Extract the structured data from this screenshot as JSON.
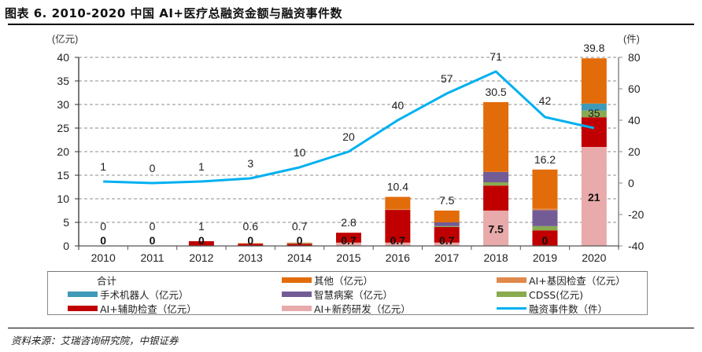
{
  "title": "图表 6. 2010-2020 中国 AI+医疗总融资金额与融资事件数",
  "source": "资料来源：艾瑞咨询研究院，中银证券",
  "chart_data": {
    "type": "bar",
    "stacked": true,
    "title": "2010-2020 中国 AI+医疗总融资金额与融资事件数",
    "categories": [
      "2010",
      "2011",
      "2012",
      "2013",
      "2014",
      "2015",
      "2016",
      "2017",
      "2018",
      "2019",
      "2020"
    ],
    "left_axis": {
      "label": "(亿元)",
      "ylim": [
        0,
        40
      ],
      "ticks": [
        "0",
        "5",
        "10",
        "15",
        "20",
        "25",
        "30",
        "35",
        "40"
      ]
    },
    "right_axis": {
      "label": "(件)",
      "ylim": [
        -40,
        80
      ],
      "ticks": [
        "-40",
        "-20",
        "0",
        "20",
        "40",
        "60",
        "80"
      ]
    },
    "grid": true,
    "legend_position": "bottom",
    "series": [
      {
        "name": "AI+新药研发（亿元）",
        "color": "#E8AAAA",
        "axis": "left",
        "values": [
          0,
          0,
          0,
          0,
          0,
          0.7,
          0.7,
          0.7,
          7.5,
          0,
          21
        ]
      },
      {
        "name": "AI+辅助检查（亿元）",
        "color": "#C00000",
        "axis": "left",
        "values": [
          0,
          0,
          1.0,
          0.5,
          0.45,
          2.1,
          7.0,
          3.3,
          5.3,
          3.3,
          6.3
        ]
      },
      {
        "name": "CDSS(亿元)",
        "color": "#8AAA50",
        "axis": "left",
        "values": [
          0,
          0,
          0,
          0,
          0.2,
          0,
          0,
          0.2,
          0.7,
          0.9,
          1.4
        ]
      },
      {
        "name": "智慧病案（亿元）",
        "color": "#735C96",
        "axis": "left",
        "values": [
          0,
          0,
          0,
          0,
          0,
          0,
          0,
          0.8,
          2.2,
          3.4,
          0
        ]
      },
      {
        "name": "手术机器人（亿元）",
        "color": "#3E9AB8",
        "axis": "left",
        "values": [
          0,
          0,
          0,
          0,
          0,
          0,
          0,
          0,
          0,
          0,
          1.5
        ]
      },
      {
        "name": "AI+基因检查（亿元）",
        "color": "#E0894A",
        "axis": "left",
        "values": [
          0,
          0,
          0,
          0.1,
          0.05,
          0,
          0.1,
          0,
          0,
          0.3,
          0
        ]
      },
      {
        "name": "其他（亿元）",
        "color": "#E36C0A",
        "axis": "left",
        "values": [
          0,
          0,
          0,
          0,
          0,
          0,
          2.6,
          2.5,
          14.8,
          8.3,
          9.6
        ]
      },
      {
        "name": "融资事件数（件）",
        "color": "#00B0F0",
        "type": "line",
        "axis": "right",
        "values": [
          1,
          0,
          1,
          3,
          10,
          20,
          40,
          57,
          71,
          42,
          35
        ]
      }
    ],
    "total_series_name": "合计",
    "total_labels": [
      "0",
      "0",
      "1",
      "0.6",
      "0.7",
      "2.8",
      "10.4",
      "7.5",
      "30.5",
      "16.2",
      "39.8"
    ],
    "drug_labels": [
      "0",
      "0",
      "0",
      "0",
      "0",
      "0.7",
      "0.7",
      "0.7",
      "7.5",
      "0",
      "21"
    ],
    "count_labels": [
      "1",
      "0",
      "1",
      "3",
      "10",
      "20",
      "40",
      "57",
      "71",
      "42",
      "35"
    ]
  },
  "legend": [
    {
      "label": "合计",
      "color": "",
      "kind": "none"
    },
    {
      "label": "其他（亿元）",
      "color": "#E36C0A",
      "kind": "bar"
    },
    {
      "label": "AI+基因检查（亿元）",
      "color": "#E0894A",
      "kind": "bar"
    },
    {
      "label": "手术机器人（亿元）",
      "color": "#3E9AB8",
      "kind": "bar"
    },
    {
      "label": "智慧病案（亿元）",
      "color": "#735C96",
      "kind": "bar"
    },
    {
      "label": "CDSS(亿元)",
      "color": "#8AAA50",
      "kind": "bar"
    },
    {
      "label": "AI+辅助检查（亿元）",
      "color": "#C00000",
      "kind": "bar"
    },
    {
      "label": "AI+新药研发（亿元）",
      "color": "#E8AAAA",
      "kind": "bar"
    },
    {
      "label": "融资事件数（件）",
      "color": "#00B0F0",
      "kind": "line"
    }
  ]
}
